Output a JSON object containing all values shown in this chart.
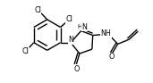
{
  "bg_color": "#ffffff",
  "line_color": "#000000",
  "lw": 1.0,
  "fs": 5.8,
  "fs_small": 5.0,
  "xlim": [
    0,
    10
  ],
  "ylim": [
    0,
    5.5
  ]
}
